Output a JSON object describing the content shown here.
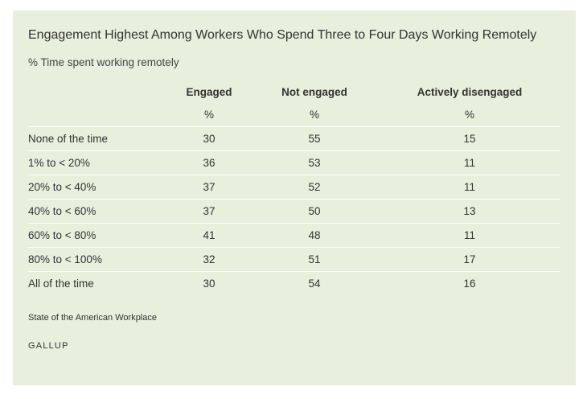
{
  "chart_data": {
    "type": "table",
    "title": "Engagement Highest Among Workers Who Spend Three to Four Days Working Remotely",
    "subtitle": "% Time spent working remotely",
    "columns": [
      {
        "name": "Engaged",
        "unit": "%"
      },
      {
        "name": "Not engaged",
        "unit": "%"
      },
      {
        "name": "Actively disengaged",
        "unit": "%"
      }
    ],
    "rows": [
      {
        "label": "None of the time",
        "values": [
          "30",
          "55",
          "15"
        ]
      },
      {
        "label": "1% to < 20%",
        "values": [
          "36",
          "53",
          "11"
        ]
      },
      {
        "label": "20% to < 40%",
        "values": [
          "37",
          "52",
          "11"
        ]
      },
      {
        "label": "40% to < 60%",
        "values": [
          "37",
          "50",
          "13"
        ]
      },
      {
        "label": "60% to < 80%",
        "values": [
          "41",
          "48",
          "11"
        ]
      },
      {
        "label": "80% to < 100%",
        "values": [
          "32",
          "51",
          "17"
        ]
      },
      {
        "label": "All of the time",
        "values": [
          "30",
          "54",
          "16"
        ]
      }
    ],
    "source": "State of the American Workplace",
    "brand": "GALLUP"
  },
  "colors": {
    "panel_background": "#e8efdd",
    "text": "#333333",
    "row_divider": "#ffffff"
  }
}
